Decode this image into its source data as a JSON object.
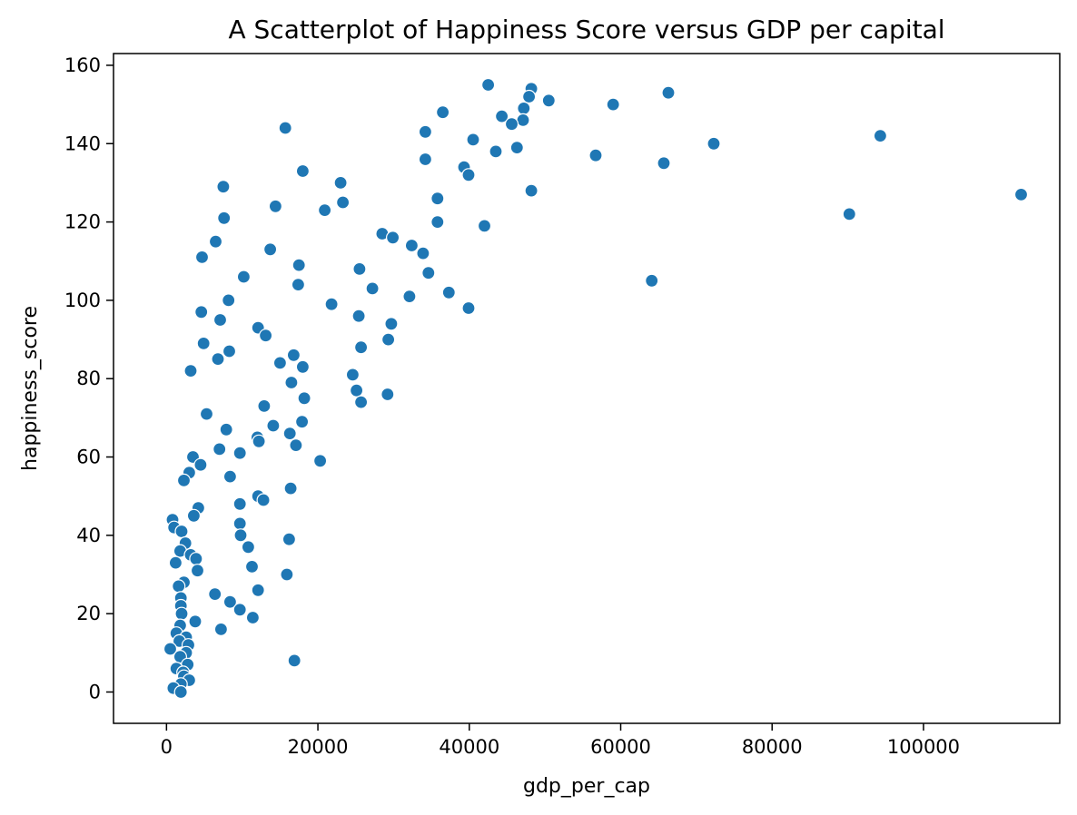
{
  "chart_data": {
    "type": "scatter",
    "title": "A Scatterplot of Happiness Score versus GDP per capital",
    "xlabel": "gdp_per_cap",
    "ylabel": "happiness_score",
    "xlim": [
      -7000,
      118000
    ],
    "ylim": [
      -8,
      163
    ],
    "xticks": [
      0,
      20000,
      40000,
      60000,
      80000,
      100000
    ],
    "xtick_labels": [
      "0",
      "20000",
      "40000",
      "60000",
      "80000",
      "100000"
    ],
    "yticks": [
      0,
      20,
      40,
      60,
      80,
      100,
      120,
      140,
      160
    ],
    "ytick_labels": [
      "0",
      "20",
      "40",
      "60",
      "80",
      "100",
      "120",
      "140",
      "160"
    ],
    "grid": false,
    "marker_color": "#1f77b4",
    "points": [
      [
        42500,
        155
      ],
      [
        48200,
        154
      ],
      [
        66300,
        153
      ],
      [
        47900,
        152
      ],
      [
        50500,
        151
      ],
      [
        59000,
        150
      ],
      [
        47200,
        149
      ],
      [
        36500,
        148
      ],
      [
        44300,
        147
      ],
      [
        47100,
        146
      ],
      [
        45600,
        145
      ],
      [
        15700,
        144
      ],
      [
        34200,
        143
      ],
      [
        94300,
        142
      ],
      [
        40500,
        141
      ],
      [
        72300,
        140
      ],
      [
        46300,
        139
      ],
      [
        43500,
        138
      ],
      [
        56700,
        137
      ],
      [
        34200,
        136
      ],
      [
        65700,
        135
      ],
      [
        39300,
        134
      ],
      [
        18000,
        133
      ],
      [
        39900,
        132
      ],
      [
        23000,
        130
      ],
      [
        7500,
        129
      ],
      [
        48200,
        128
      ],
      [
        112900,
        127
      ],
      [
        35800,
        126
      ],
      [
        23300,
        125
      ],
      [
        14400,
        124
      ],
      [
        20900,
        123
      ],
      [
        90200,
        122
      ],
      [
        7600,
        121
      ],
      [
        35800,
        120
      ],
      [
        42000,
        119
      ],
      [
        28500,
        117
      ],
      [
        29900,
        116
      ],
      [
        6500,
        115
      ],
      [
        32400,
        114
      ],
      [
        13700,
        113
      ],
      [
        33900,
        112
      ],
      [
        4700,
        111
      ],
      [
        17500,
        109
      ],
      [
        25500,
        108
      ],
      [
        34600,
        107
      ],
      [
        10200,
        106
      ],
      [
        64100,
        105
      ],
      [
        17400,
        104
      ],
      [
        27200,
        103
      ],
      [
        37300,
        102
      ],
      [
        32100,
        101
      ],
      [
        8200,
        100
      ],
      [
        21800,
        99
      ],
      [
        39900,
        98
      ],
      [
        4600,
        97
      ],
      [
        25400,
        96
      ],
      [
        7100,
        95
      ],
      [
        29700,
        94
      ],
      [
        12100,
        93
      ],
      [
        13100,
        91
      ],
      [
        29300,
        90
      ],
      [
        4900,
        89
      ],
      [
        25700,
        88
      ],
      [
        8300,
        87
      ],
      [
        16800,
        86
      ],
      [
        6800,
        85
      ],
      [
        15000,
        84
      ],
      [
        18000,
        83
      ],
      [
        3200,
        82
      ],
      [
        24600,
        81
      ],
      [
        16500,
        79
      ],
      [
        25100,
        77
      ],
      [
        29200,
        76
      ],
      [
        18200,
        75
      ],
      [
        25700,
        74
      ],
      [
        12900,
        73
      ],
      [
        5300,
        71
      ],
      [
        17900,
        69
      ],
      [
        14100,
        68
      ],
      [
        7900,
        67
      ],
      [
        16300,
        66
      ],
      [
        12000,
        65
      ],
      [
        12200,
        64
      ],
      [
        17100,
        63
      ],
      [
        7000,
        62
      ],
      [
        9700,
        61
      ],
      [
        3500,
        60
      ],
      [
        20300,
        59
      ],
      [
        4500,
        58
      ],
      [
        3000,
        56
      ],
      [
        8400,
        55
      ],
      [
        2300,
        54
      ],
      [
        16400,
        52
      ],
      [
        12100,
        50
      ],
      [
        12800,
        49
      ],
      [
        9700,
        48
      ],
      [
        4200,
        47
      ],
      [
        3600,
        45
      ],
      [
        800,
        44
      ],
      [
        9700,
        43
      ],
      [
        1000,
        42
      ],
      [
        2000,
        41
      ],
      [
        9800,
        40
      ],
      [
        16200,
        39
      ],
      [
        2500,
        38
      ],
      [
        10800,
        37
      ],
      [
        1800,
        36
      ],
      [
        3200,
        35
      ],
      [
        3900,
        34
      ],
      [
        1200,
        33
      ],
      [
        11300,
        32
      ],
      [
        4100,
        31
      ],
      [
        15900,
        30
      ],
      [
        2300,
        28
      ],
      [
        1600,
        27
      ],
      [
        12100,
        26
      ],
      [
        6400,
        25
      ],
      [
        1900,
        24
      ],
      [
        8400,
        23
      ],
      [
        1900,
        22
      ],
      [
        9700,
        21
      ],
      [
        2000,
        20
      ],
      [
        11400,
        19
      ],
      [
        3800,
        18
      ],
      [
        1800,
        17
      ],
      [
        7200,
        16
      ],
      [
        1300,
        15
      ],
      [
        2600,
        14
      ],
      [
        1700,
        13
      ],
      [
        2900,
        12
      ],
      [
        500,
        11
      ],
      [
        2600,
        10
      ],
      [
        1800,
        9
      ],
      [
        16900,
        8
      ],
      [
        2800,
        7
      ],
      [
        1300,
        6
      ],
      [
        2200,
        5
      ],
      [
        2300,
        4
      ],
      [
        3000,
        3
      ],
      [
        1900,
        2
      ],
      [
        900,
        1
      ],
      [
        1900,
        0
      ]
    ]
  }
}
